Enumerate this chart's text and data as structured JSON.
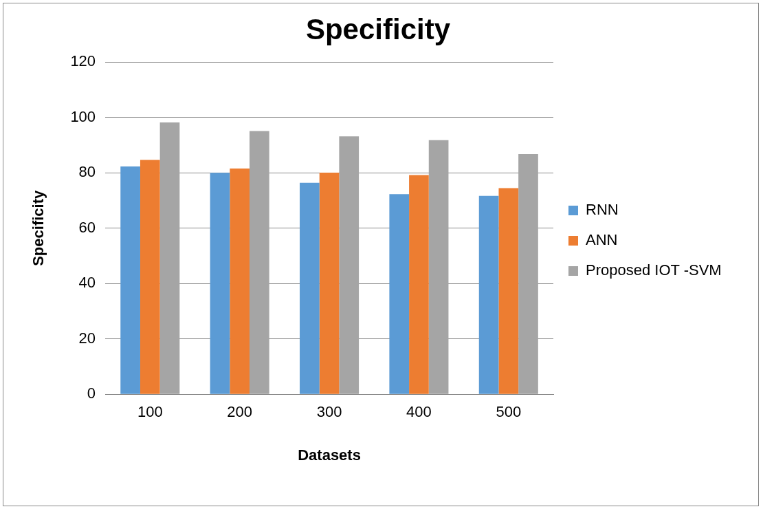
{
  "chart_data": {
    "type": "bar",
    "title": "Specificity",
    "xlabel": "Datasets",
    "ylabel": "Specificity",
    "categories": [
      "100",
      "200",
      "300",
      "400",
      "500"
    ],
    "series": [
      {
        "name": "RNN",
        "color": "#5b9bd5",
        "values": [
          82.3,
          80,
          76.4,
          72.3,
          71.7
        ]
      },
      {
        "name": "ANN",
        "color": "#ed7d31",
        "values": [
          84.7,
          81.6,
          80.1,
          79.2,
          74.5
        ]
      },
      {
        "name": "Proposed IOT -SVM",
        "color": "#a5a5a5",
        "values": [
          98.2,
          95.1,
          93.2,
          91.8,
          86.8
        ]
      }
    ],
    "ylim": [
      0,
      120
    ],
    "yticks": [
      0,
      20,
      40,
      60,
      80,
      100,
      120
    ],
    "grid": "y",
    "legend": "right"
  }
}
